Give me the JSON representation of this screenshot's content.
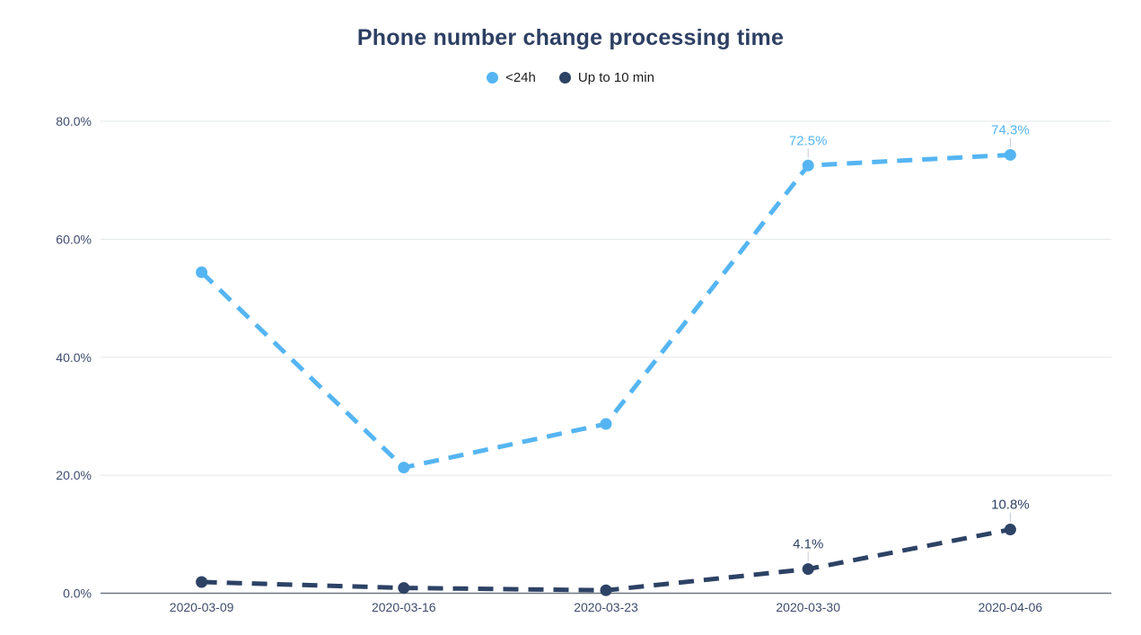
{
  "chart": {
    "title": "Phone number change processing time"
  },
  "legend": {
    "items": [
      {
        "label": "<24h",
        "color": "#55b5f2"
      },
      {
        "label": "Up to 10 min",
        "color": "#2d4265"
      }
    ]
  },
  "chart_data": {
    "type": "line",
    "title": "Phone number change processing time",
    "x": [
      "2020-03-09",
      "2020-03-16",
      "2020-03-23",
      "2020-03-30",
      "2020-04-06"
    ],
    "series": [
      {
        "name": "<24h",
        "color": "#55b5f2",
        "values": [
          54.4,
          21.3,
          28.7,
          72.5,
          74.3
        ],
        "point_labels": [
          "",
          "",
          "",
          "72.5%",
          "74.3%"
        ]
      },
      {
        "name": "Up to 10 min",
        "color": "#2d4265",
        "values": [
          1.9,
          0.9,
          0.5,
          4.1,
          10.8
        ],
        "point_labels": [
          "",
          "",
          "",
          "4.1%",
          "10.8%"
        ]
      }
    ],
    "y_ticks": [
      "0.0%",
      "20.0%",
      "40.0%",
      "60.0%",
      "80.0%"
    ],
    "y_tick_values": [
      0,
      20,
      40,
      60,
      80
    ],
    "ylim": [
      0,
      80
    ],
    "xlabel": "",
    "ylabel": "",
    "line_style": "dashed",
    "grid": true,
    "legend_position": "top"
  }
}
